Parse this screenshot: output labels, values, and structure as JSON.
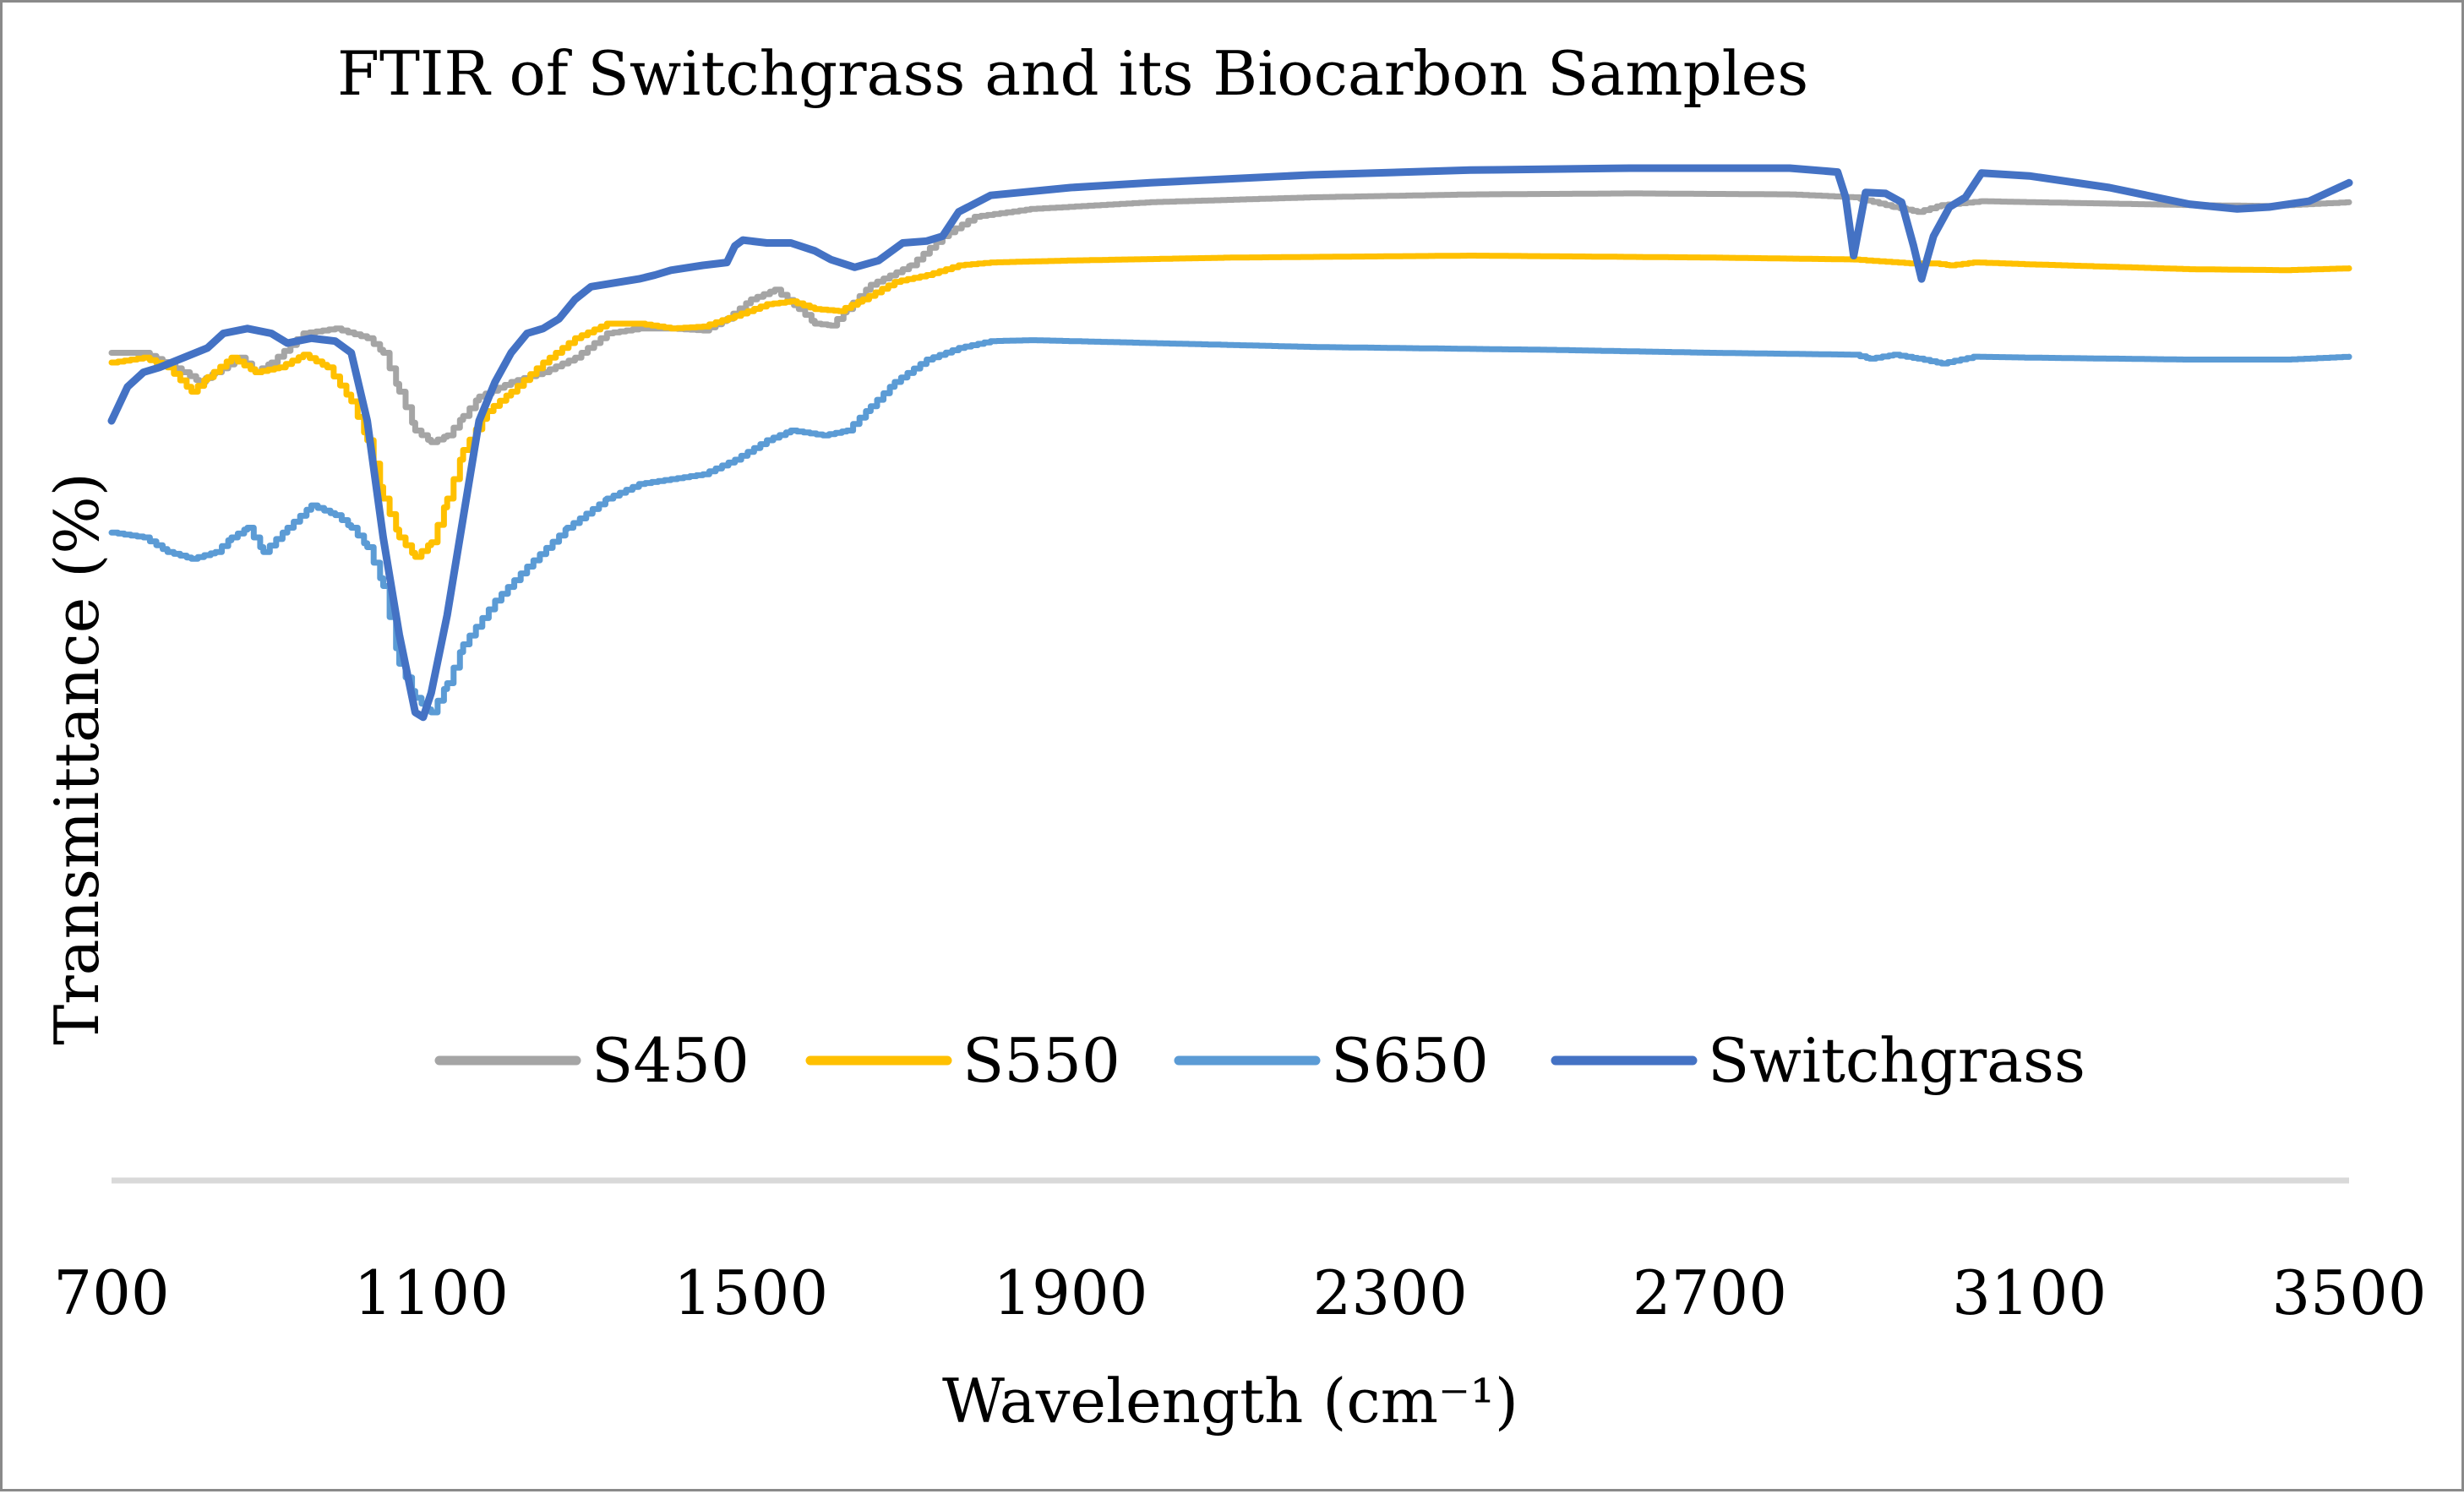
{
  "chart_data": {
    "type": "line",
    "title": "FTIR of Switchgrass and its Biocarbon Samples",
    "xlabel": "Wavelength (cm⁻¹)",
    "ylabel": "Transmittance (%)",
    "xlim": [
      700,
      3500
    ],
    "ylim": [
      0,
      100
    ],
    "x_ticks": [
      "700",
      "1100",
      "1500",
      "1900",
      "2300",
      "2700",
      "3100",
      "3500"
    ],
    "y_ticks_shown": false,
    "gridlines": false,
    "legend_position": "bottom-inside",
    "series": [
      {
        "name": "S450",
        "color": "#a5a5a5",
        "step": true,
        "points": [
          [
            700,
            77
          ],
          [
            740,
            77
          ],
          [
            790,
            75
          ],
          [
            810,
            74
          ],
          [
            830,
            75
          ],
          [
            860,
            76.5
          ],
          [
            880,
            75
          ],
          [
            900,
            76
          ],
          [
            940,
            79
          ],
          [
            980,
            79.5
          ],
          [
            1020,
            78.5
          ],
          [
            1040,
            77
          ],
          [
            1060,
            73
          ],
          [
            1080,
            69
          ],
          [
            1100,
            67.8
          ],
          [
            1120,
            68.5
          ],
          [
            1140,
            70.5
          ],
          [
            1160,
            72.5
          ],
          [
            1200,
            74
          ],
          [
            1240,
            75
          ],
          [
            1280,
            76.5
          ],
          [
            1320,
            79
          ],
          [
            1360,
            79.5
          ],
          [
            1400,
            79.5
          ],
          [
            1440,
            79.3
          ],
          [
            1470,
            80.5
          ],
          [
            1500,
            82.5
          ],
          [
            1530,
            83.5
          ],
          [
            1560,
            81.5
          ],
          [
            1580,
            80
          ],
          [
            1600,
            79.8
          ],
          [
            1620,
            81.5
          ],
          [
            1650,
            84
          ],
          [
            1700,
            86
          ],
          [
            1740,
            89
          ],
          [
            1780,
            91
          ],
          [
            1850,
            91.8
          ],
          [
            2000,
            92.5
          ],
          [
            2200,
            93
          ],
          [
            2400,
            93.3
          ],
          [
            2600,
            93.4
          ],
          [
            2800,
            93.3
          ],
          [
            2880,
            93
          ],
          [
            2930,
            92
          ],
          [
            2960,
            91.5
          ],
          [
            2990,
            92.2
          ],
          [
            3040,
            92.6
          ],
          [
            3100,
            92.5
          ],
          [
            3300,
            92.2
          ],
          [
            3400,
            92.1
          ],
          [
            3500,
            92.5
          ]
        ]
      },
      {
        "name": "S550",
        "color": "#ffc000",
        "step": true,
        "points": [
          [
            700,
            76
          ],
          [
            740,
            76.5
          ],
          [
            770,
            75.5
          ],
          [
            800,
            73
          ],
          [
            820,
            74.5
          ],
          [
            850,
            76.5
          ],
          [
            880,
            75
          ],
          [
            910,
            75.5
          ],
          [
            940,
            76.8
          ],
          [
            970,
            75.5
          ],
          [
            1000,
            72
          ],
          [
            1020,
            68
          ],
          [
            1040,
            62
          ],
          [
            1060,
            58
          ],
          [
            1080,
            56
          ],
          [
            1100,
            57.5
          ],
          [
            1120,
            62
          ],
          [
            1140,
            67
          ],
          [
            1170,
            71
          ],
          [
            1200,
            73
          ],
          [
            1240,
            76
          ],
          [
            1280,
            78.5
          ],
          [
            1320,
            80
          ],
          [
            1360,
            80
          ],
          [
            1400,
            79.5
          ],
          [
            1440,
            79.7
          ],
          [
            1480,
            80.8
          ],
          [
            1520,
            82
          ],
          [
            1550,
            82.3
          ],
          [
            1580,
            81.5
          ],
          [
            1610,
            81.3
          ],
          [
            1640,
            82.5
          ],
          [
            1680,
            84.3
          ],
          [
            1720,
            85
          ],
          [
            1760,
            86
          ],
          [
            1800,
            86.3
          ],
          [
            1900,
            86.5
          ],
          [
            2100,
            86.8
          ],
          [
            2400,
            87
          ],
          [
            2700,
            86.8
          ],
          [
            2880,
            86.6
          ],
          [
            2950,
            86.2
          ],
          [
            2980,
            86.2
          ],
          [
            3000,
            86
          ],
          [
            3030,
            86.3
          ],
          [
            3100,
            86.1
          ],
          [
            3300,
            85.6
          ],
          [
            3420,
            85.5
          ],
          [
            3500,
            85.7
          ]
        ]
      },
      {
        "name": "S650",
        "color": "#5b9bd5",
        "step": true,
        "points": [
          [
            700,
            58.5
          ],
          [
            740,
            58
          ],
          [
            770,
            56.5
          ],
          [
            800,
            55.8
          ],
          [
            830,
            56.5
          ],
          [
            850,
            58
          ],
          [
            870,
            59
          ],
          [
            890,
            56.5
          ],
          [
            920,
            59
          ],
          [
            950,
            61.3
          ],
          [
            980,
            60.3
          ],
          [
            1000,
            59
          ],
          [
            1020,
            57
          ],
          [
            1040,
            53
          ],
          [
            1060,
            45
          ],
          [
            1080,
            41.5
          ],
          [
            1100,
            40
          ],
          [
            1120,
            43
          ],
          [
            1140,
            47
          ],
          [
            1180,
            51.5
          ],
          [
            1220,
            55
          ],
          [
            1270,
            59
          ],
          [
            1320,
            62
          ],
          [
            1360,
            63.5
          ],
          [
            1400,
            64
          ],
          [
            1440,
            64.5
          ],
          [
            1480,
            66
          ],
          [
            1520,
            68
          ],
          [
            1550,
            69
          ],
          [
            1590,
            68.5
          ],
          [
            1620,
            69
          ],
          [
            1650,
            71.5
          ],
          [
            1680,
            74
          ],
          [
            1720,
            76.3
          ],
          [
            1760,
            77.5
          ],
          [
            1800,
            78.2
          ],
          [
            1850,
            78.3
          ],
          [
            2000,
            78
          ],
          [
            2200,
            77.6
          ],
          [
            2500,
            77.3
          ],
          [
            2700,
            77
          ],
          [
            2880,
            76.8
          ],
          [
            2900,
            76.4
          ],
          [
            2930,
            76.8
          ],
          [
            2960,
            76.4
          ],
          [
            2990,
            75.9
          ],
          [
            3030,
            76.6
          ],
          [
            3100,
            76.5
          ],
          [
            3300,
            76.3
          ],
          [
            3420,
            76.3
          ],
          [
            3500,
            76.6
          ]
        ]
      },
      {
        "name": "Switchgrass",
        "color": "#4472c4",
        "step": false,
        "points": [
          [
            700,
            70
          ],
          [
            720,
            73.5
          ],
          [
            740,
            75
          ],
          [
            760,
            75.5
          ],
          [
            790,
            76.5
          ],
          [
            820,
            77.5
          ],
          [
            840,
            79
          ],
          [
            870,
            79.5
          ],
          [
            900,
            79
          ],
          [
            920,
            78
          ],
          [
            950,
            78.5
          ],
          [
            980,
            78.2
          ],
          [
            1000,
            77
          ],
          [
            1020,
            70
          ],
          [
            1040,
            58
          ],
          [
            1060,
            48
          ],
          [
            1080,
            40
          ],
          [
            1090,
            39.5
          ],
          [
            1100,
            42
          ],
          [
            1120,
            50
          ],
          [
            1140,
            60
          ],
          [
            1160,
            70
          ],
          [
            1180,
            74
          ],
          [
            1200,
            77
          ],
          [
            1220,
            79
          ],
          [
            1240,
            79.5
          ],
          [
            1260,
            80.5
          ],
          [
            1280,
            82.5
          ],
          [
            1300,
            83.8
          ],
          [
            1330,
            84.2
          ],
          [
            1360,
            84.6
          ],
          [
            1380,
            85
          ],
          [
            1400,
            85.5
          ],
          [
            1440,
            86
          ],
          [
            1470,
            86.3
          ],
          [
            1480,
            88
          ],
          [
            1490,
            88.6
          ],
          [
            1520,
            88.3
          ],
          [
            1550,
            88.3
          ],
          [
            1580,
            87.5
          ],
          [
            1600,
            86.6
          ],
          [
            1630,
            85.8
          ],
          [
            1660,
            86.5
          ],
          [
            1690,
            88.3
          ],
          [
            1720,
            88.5
          ],
          [
            1740,
            89
          ],
          [
            1760,
            91.5
          ],
          [
            1800,
            93.2
          ],
          [
            1900,
            94
          ],
          [
            2000,
            94.5
          ],
          [
            2200,
            95.3
          ],
          [
            2400,
            95.8
          ],
          [
            2600,
            96
          ],
          [
            2800,
            96
          ],
          [
            2860,
            95.6
          ],
          [
            2870,
            93
          ],
          [
            2880,
            87
          ],
          [
            2895,
            93.5
          ],
          [
            2920,
            93.4
          ],
          [
            2940,
            92.5
          ],
          [
            2955,
            88
          ],
          [
            2965,
            84.6
          ],
          [
            2980,
            89
          ],
          [
            3000,
            92
          ],
          [
            3020,
            93
          ],
          [
            3040,
            95.5
          ],
          [
            3100,
            95.2
          ],
          [
            3200,
            94
          ],
          [
            3300,
            92.3
          ],
          [
            3360,
            91.8
          ],
          [
            3400,
            92
          ],
          [
            3450,
            92.6
          ],
          [
            3500,
            94.5
          ]
        ]
      }
    ]
  }
}
